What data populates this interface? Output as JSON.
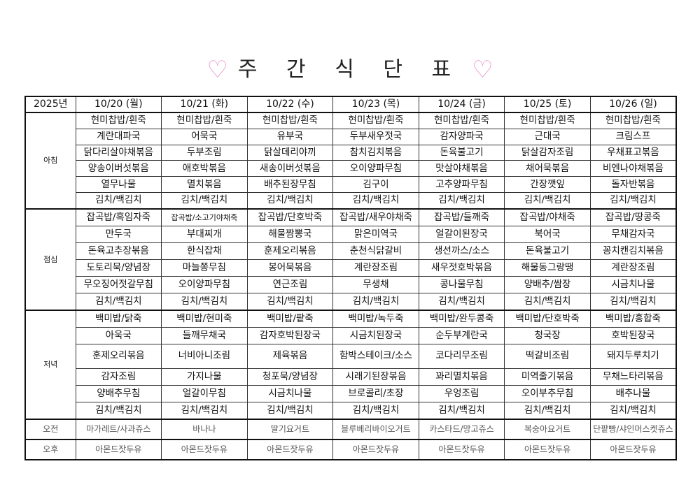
{
  "title": {
    "text": "주 간 식 단 표",
    "heart": "♡",
    "heart_color": "#e89bd0"
  },
  "header": {
    "year": "2025년",
    "days": [
      "10/20 (월)",
      "10/21 (화)",
      "10/22 (수)",
      "10/23 (목)",
      "10/24 (금)",
      "10/25 (토)",
      "10/26 (일)"
    ]
  },
  "meals": [
    {
      "label": "아침",
      "cls": "b",
      "rows": [
        [
          "현미찹밥/흰죽",
          "현미찹밥/흰죽",
          "현미찹밥/흰죽",
          "현미찹밥/흰죽",
          "현미찹밥/흰죽",
          "현미찹밥/흰죽",
          "현미찹밥/흰죽"
        ],
        [
          "계란대파국",
          "어묵국",
          "유부국",
          "두부새우젓국",
          "감자양파국",
          "근대국",
          "크림스프"
        ],
        [
          "닭다리살야채볶음",
          "두부조림",
          "닭살데리야끼",
          "참치김치볶음",
          "돈육불고기",
          "닭살감자조림",
          "우채표고볶음"
        ],
        [
          "양송이버섯볶음",
          "애호박볶음",
          "새송이버섯볶음",
          "오이양파무침",
          "맛살야채볶음",
          "채어묵볶음",
          "비엔나야채볶음"
        ],
        [
          "열무나물",
          "멸치볶음",
          "배추된장무침",
          "김구이",
          "고추양파무침",
          "간장깻잎",
          "돌자반볶음"
        ],
        [
          "김치/백김치",
          "김치/백김치",
          "김치/백김치",
          "김치/백김치",
          "김치/백김치",
          "김치/백김치",
          "김치/백김치"
        ]
      ]
    },
    {
      "label": "점심",
      "cls": "l",
      "rows": [
        [
          "잡곡밥/흑임자죽",
          "잡곡밥/소고기야채죽",
          "잡곡밥/단호박죽",
          "잡곡밥/새우야채죽",
          "잡곡밥/들깨죽",
          "잡곡밥/야채죽",
          "잡곡밥/땅콩죽"
        ],
        [
          "만두국",
          "부대찌개",
          "해물짬뽕국",
          "맑은미역국",
          "얼갈이된장국",
          "북어국",
          "무채감자국"
        ],
        [
          "돈육고추장볶음",
          "한식잡채",
          "훈제오리볶음",
          "춘천식닭갈비",
          "생선까스/소스",
          "돈육불고기",
          "꽁치캔김치볶음"
        ],
        [
          "도토리묵/양념장",
          "마늘쫑무침",
          "봉어묵볶음",
          "계란장조림",
          "새우젓호박볶음",
          "해물동그랑땡",
          "계란장조림"
        ],
        [
          "무오징어젓갈무침",
          "오이양파무침",
          "연근조림",
          "무생채",
          "콩나물무침",
          "양배추/쌈장",
          "시금치나물"
        ],
        [
          "김치/백김치",
          "김치/백김치",
          "김치/백김치",
          "김치/백김치",
          "김치/백김치",
          "김치/백김치",
          "김치/백김치"
        ]
      ]
    },
    {
      "label": "저녁",
      "cls": "d",
      "rows": [
        [
          "백미밥/닭죽",
          "백미밥/현미죽",
          "백미밥/팥죽",
          "백미밥/녹두죽",
          "백미밥/완두콩죽",
          "백미밥/단호박죽",
          "백미밥/흥합죽"
        ],
        [
          "아욱국",
          "들깨무채국",
          "감자호박된장국",
          "시금치된장국",
          "순두부계란국",
          "청국장",
          "호박된장국"
        ],
        [
          "훈제오리볶음",
          "너비아니조림",
          "제육볶음",
          "함박스테이크/소스",
          "코다리무조림",
          "떡갈비조림",
          "돼지두루치기"
        ],
        [
          "감자조림",
          "가지나물",
          "청포묵/양념장",
          "시래기된장볶음",
          "꽈리멸치볶음",
          "미역줄기볶음",
          "무채느타리볶음"
        ],
        [
          "양배추무침",
          "얼갈이무침",
          "시금치나물",
          "브로콜리/초장",
          "우엉조림",
          "오이부추무침",
          "배추나물"
        ],
        [
          "김치/백김치",
          "김치/백김치",
          "김치/백김치",
          "김치/백김치",
          "김치/백김치",
          "김치/백김치",
          "김치/백김치"
        ]
      ]
    },
    {
      "label": "오전",
      "cls": "s",
      "rows": [
        [
          "마가레트/사과쥬스",
          "바나나",
          "딸기요거트",
          "블루베리바이오거트",
          "카스타드/망고쥬스",
          "복숭아요거트",
          "단팥빵/샤인머스켓쥬스"
        ]
      ]
    },
    {
      "label": "오후",
      "cls": "s",
      "rows": [
        [
          "아몬드잣두유",
          "아몬드잣두유",
          "아몬드잣두유",
          "아몬드잣두유",
          "아몬드잣두유",
          "아몬드잣두유",
          "아몬드잣두유"
        ]
      ]
    }
  ]
}
